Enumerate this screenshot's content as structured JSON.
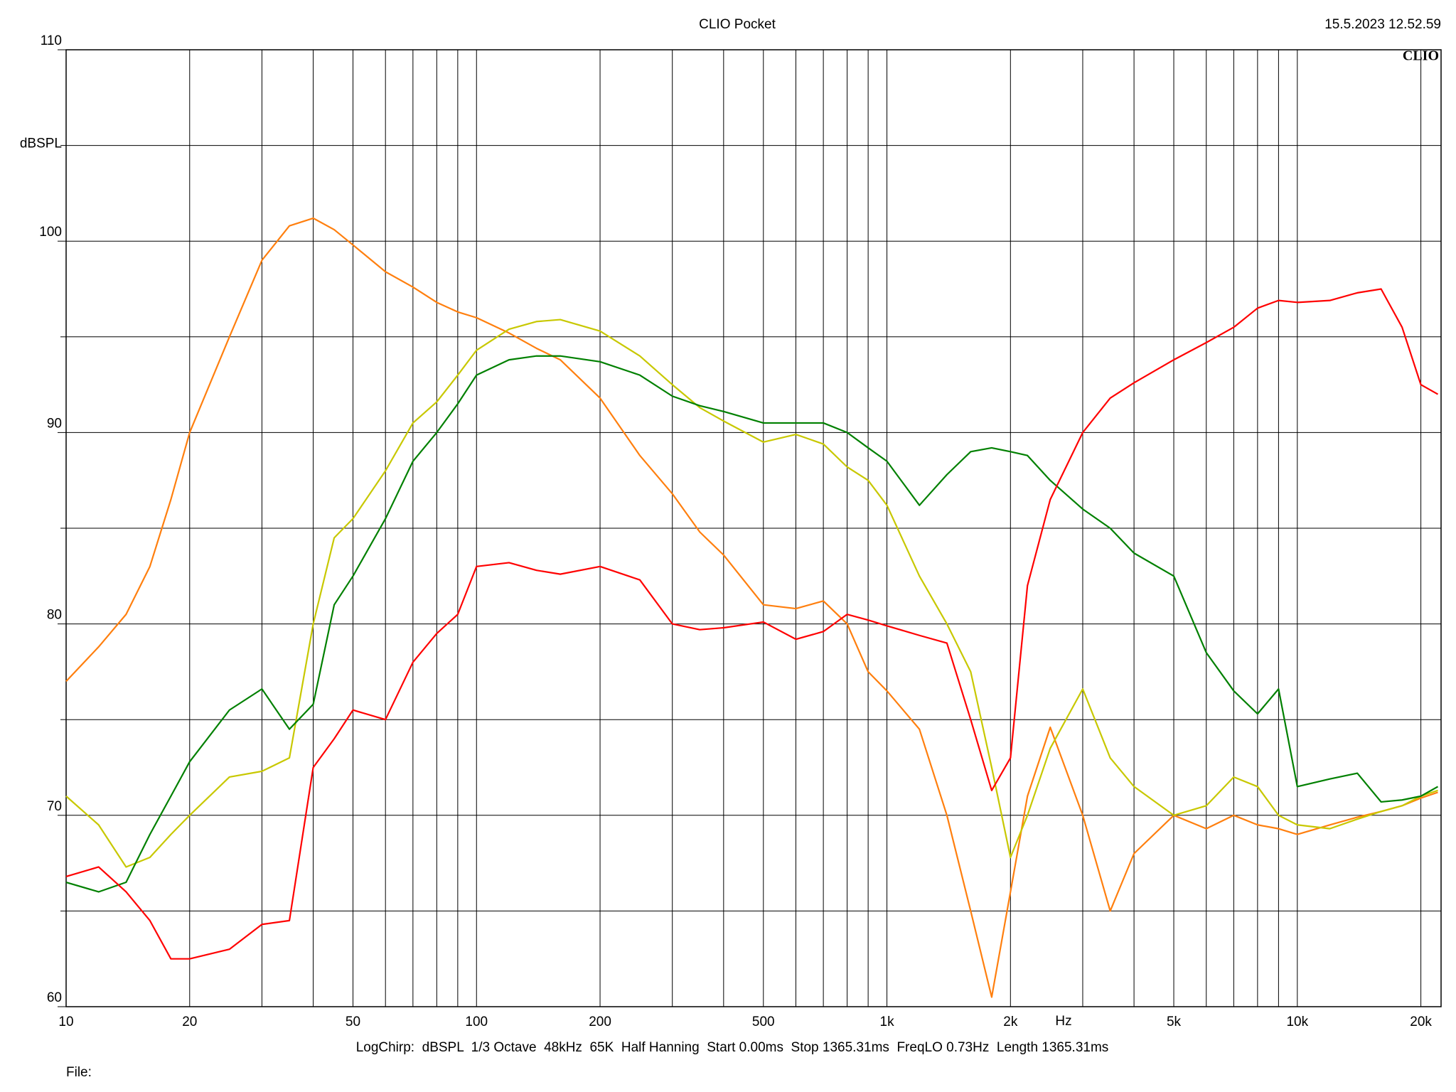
{
  "chart_data": {
    "type": "line",
    "title": "CLIO Pocket",
    "timestamp": "15.5.2023 12.52.59",
    "logo": "CLIO",
    "y_label": "dBSPL",
    "x_label": "Hz",
    "footer": "LogChirp:  dBSPL  1/3 Octave  48kHz  65K  Half Hanning  Start 0.00ms  Stop 1365.31ms  FreqLO 0.73Hz  Length 1365.31ms",
    "file_label": "File:",
    "x_log": true,
    "grid": true,
    "xlim": [
      10,
      22400
    ],
    "ylim": [
      60,
      110
    ],
    "xticks": [
      10,
      20,
      50,
      100,
      200,
      500,
      {
        "value": 1000,
        "label": "1k"
      },
      {
        "value": 2000,
        "label": "2k"
      },
      {
        "value": 5000,
        "label": "5k"
      },
      {
        "value": 10000,
        "label": "10k"
      },
      {
        "value": 20000,
        "label": "20k"
      }
    ],
    "x_minor_ticks": [
      30,
      40,
      60,
      70,
      80,
      90,
      300,
      400,
      600,
      700,
      800,
      900,
      3000,
      4000,
      6000,
      7000,
      8000,
      9000
    ],
    "yticks": [
      60,
      70,
      80,
      90,
      100,
      110
    ],
    "y_minor_ticks": [
      65,
      75,
      85,
      95,
      105
    ],
    "x": [
      10,
      12,
      14,
      16,
      18,
      20,
      25,
      30,
      35,
      40,
      45,
      50,
      60,
      70,
      80,
      90,
      100,
      120,
      140,
      160,
      200,
      250,
      300,
      350,
      400,
      500,
      600,
      700,
      800,
      900,
      1000,
      1200,
      1400,
      1600,
      1800,
      2000,
      2200,
      2500,
      3000,
      3500,
      4000,
      5000,
      6000,
      7000,
      8000,
      9000,
      10000,
      12000,
      14000,
      16000,
      18000,
      20000,
      22000
    ],
    "series": [
      {
        "color": "#ff7f0e",
        "values": [
          77,
          78.8,
          80.5,
          83,
          86.5,
          90,
          95,
          99,
          100.8,
          101.2,
          100.6,
          99.8,
          98.4,
          97.6,
          96.8,
          96.3,
          96,
          95.2,
          94.4,
          93.8,
          91.8,
          88.8,
          86.8,
          84.8,
          83.6,
          81,
          80.8,
          81.2,
          80,
          77.5,
          76.5,
          74.5,
          70,
          65,
          60.5,
          66,
          71,
          74.6,
          70,
          65,
          68,
          70,
          69.3,
          70,
          69.5,
          69.3,
          69,
          69.5,
          69.9,
          70.2,
          70.5,
          70.9,
          71.2
        ]
      },
      {
        "color": "#c8c800",
        "values": [
          71,
          69.5,
          67.3,
          67.8,
          69,
          70,
          72,
          72.3,
          73,
          80,
          84.5,
          85.5,
          88,
          90.5,
          91.6,
          93,
          94.3,
          95.4,
          95.8,
          95.9,
          95.3,
          94,
          92.5,
          91.3,
          90.6,
          89.5,
          89.9,
          89.4,
          88.2,
          87.5,
          86.2,
          82.5,
          80,
          77.5,
          72.5,
          67.8,
          70,
          73.5,
          76.6,
          73,
          71.5,
          70,
          70.5,
          72,
          71.5,
          70,
          69.5,
          69.3,
          69.8,
          70.2,
          70.5,
          71,
          71.3
        ]
      },
      {
        "color": "#008000",
        "values": [
          66.5,
          66,
          66.5,
          69,
          71,
          72.8,
          75.5,
          76.6,
          74.5,
          75.8,
          81,
          82.5,
          85.5,
          88.5,
          90,
          91.5,
          93,
          93.8,
          94,
          94,
          93.7,
          93,
          91.9,
          91.4,
          91.1,
          90.5,
          90.5,
          90.5,
          90,
          89.2,
          88.5,
          86.2,
          87.8,
          89,
          89.2,
          89,
          88.8,
          87.5,
          86,
          85,
          83.7,
          82.5,
          78.5,
          76.5,
          75.3,
          76.6,
          71.5,
          71.9,
          72.2,
          70.7,
          70.8,
          71,
          71.5
        ]
      },
      {
        "color": "#ff0000",
        "values": [
          66.8,
          67.3,
          66,
          64.5,
          62.5,
          62.5,
          63,
          64.3,
          64.5,
          72.5,
          74,
          75.5,
          75,
          78,
          79.5,
          80.5,
          83,
          83.2,
          82.8,
          82.6,
          83,
          82.3,
          80,
          79.7,
          79.8,
          80.1,
          79.2,
          79.6,
          80.5,
          80.2,
          79.9,
          79.4,
          79,
          75,
          71.3,
          73,
          82,
          86.5,
          90,
          91.8,
          92.6,
          93.8,
          94.7,
          95.5,
          96.5,
          96.9,
          96.8,
          96.9,
          97.3,
          97.5,
          95.5,
          92.5,
          92
        ]
      }
    ]
  }
}
